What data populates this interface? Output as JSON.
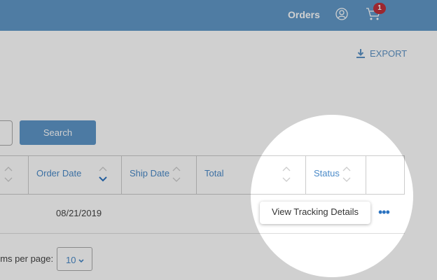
{
  "header": {
    "nav_orders": "Orders",
    "cart_count": "1"
  },
  "toolbar": {
    "export_label": "EXPORT"
  },
  "search": {
    "button_label": "Search"
  },
  "table": {
    "columns": [
      {
        "label": "Order Date"
      },
      {
        "label": "Ship Date"
      },
      {
        "label": "Total"
      },
      {
        "label": "Status"
      }
    ],
    "rows": [
      {
        "order_date": "08/21/2019"
      }
    ],
    "row_menu_item": "View Tracking Details",
    "more_label": "•••"
  },
  "pagination": {
    "items_per_page_label": "ems per page:",
    "items_per_page_value": "10"
  },
  "colors": {
    "header": "#6199c8",
    "accent": "#4a8ac8",
    "badge": "#c0303a"
  }
}
